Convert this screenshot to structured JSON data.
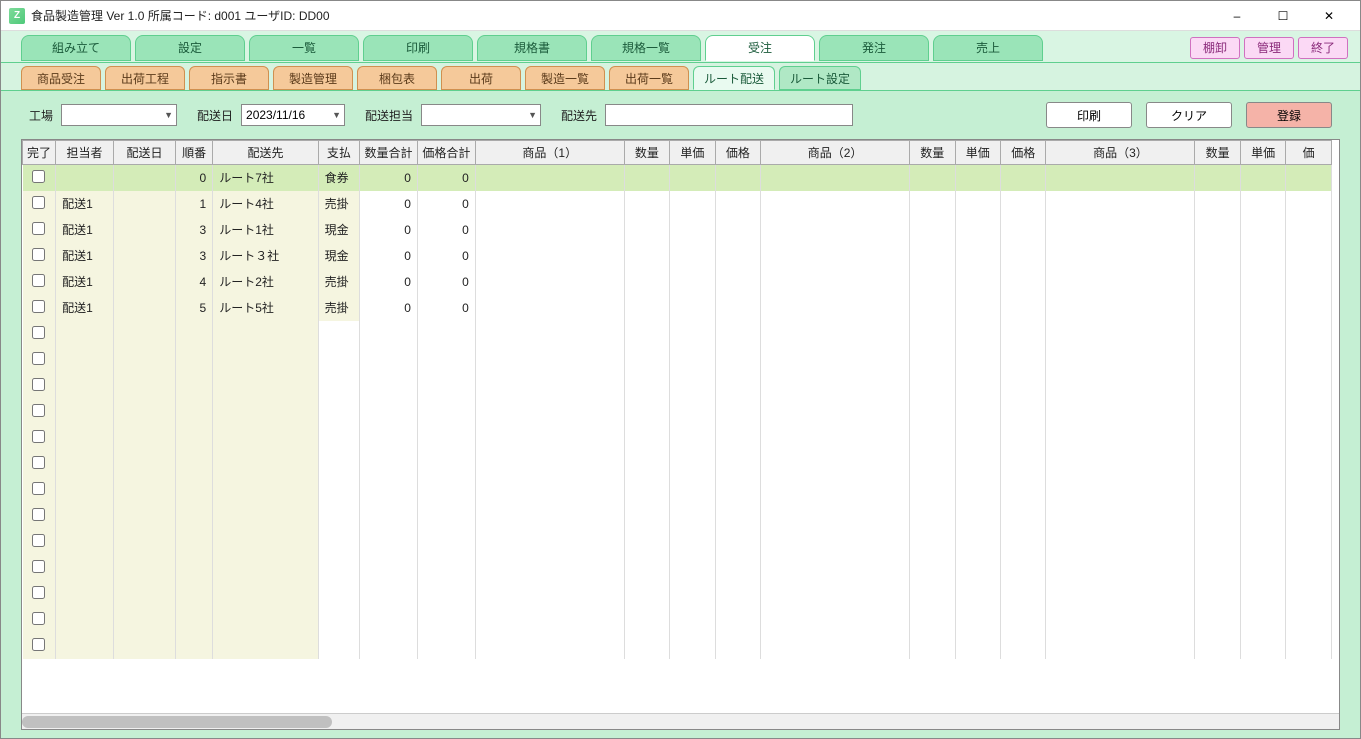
{
  "window": {
    "title": "食品製造管理 Ver 1.0  所属コード: d001       ユーザID: DD00",
    "icon_letter": "Z"
  },
  "topActions": {
    "inventory": "棚卸",
    "admin": "管理",
    "exit": "終了"
  },
  "mainTabs": [
    {
      "label": "組み立て"
    },
    {
      "label": "設定"
    },
    {
      "label": "一覧"
    },
    {
      "label": "印刷"
    },
    {
      "label": "規格書"
    },
    {
      "label": "規格一覧"
    },
    {
      "label": "受注",
      "active": true
    },
    {
      "label": "発注"
    },
    {
      "label": "売上"
    }
  ],
  "subTabs": [
    {
      "label": "商品受注"
    },
    {
      "label": "出荷工程"
    },
    {
      "label": "指示書"
    },
    {
      "label": "製造管理"
    },
    {
      "label": "梱包表"
    },
    {
      "label": "出荷"
    },
    {
      "label": "製造一覧"
    },
    {
      "label": "出荷一覧"
    },
    {
      "label": "ルート配送",
      "active": true,
      "green": true
    },
    {
      "label": "ルート設定",
      "green": true
    }
  ],
  "filters": {
    "factory_label": "工場",
    "factory_value": "",
    "date_label": "配送日",
    "date_value": "2023/11/16",
    "staff_label": "配送担当",
    "staff_value": "",
    "dest_label": "配送先",
    "dest_value": ""
  },
  "actions": {
    "print": "印刷",
    "clear": "クリア",
    "register": "登録"
  },
  "columns": [
    {
      "label": "完了",
      "cls": "c-done"
    },
    {
      "label": "担当者",
      "cls": "c-staff"
    },
    {
      "label": "配送日",
      "cls": "c-date"
    },
    {
      "label": "順番",
      "cls": "c-ord"
    },
    {
      "label": "配送先",
      "cls": "c-dest"
    },
    {
      "label": "支払",
      "cls": "c-pay"
    },
    {
      "label": "数量合計",
      "cls": "c-qtot"
    },
    {
      "label": "価格合計",
      "cls": "c-ptot"
    },
    {
      "label": "商品（1）",
      "cls": "c-prod"
    },
    {
      "label": "数量",
      "cls": "c-qty"
    },
    {
      "label": "単価",
      "cls": "c-unit"
    },
    {
      "label": "価格",
      "cls": "c-price"
    },
    {
      "label": "商品（2）",
      "cls": "c-prod"
    },
    {
      "label": "数量",
      "cls": "c-qty"
    },
    {
      "label": "単価",
      "cls": "c-unit"
    },
    {
      "label": "価格",
      "cls": "c-price"
    },
    {
      "label": "商品（3）",
      "cls": "c-prod"
    },
    {
      "label": "数量",
      "cls": "c-qty"
    },
    {
      "label": "単価",
      "cls": "c-unit"
    },
    {
      "label": "価",
      "cls": "c-price"
    }
  ],
  "rows": [
    {
      "selected": true,
      "staff": "",
      "date": "",
      "ord": "0",
      "dest": "ルート7社",
      "pay": "食券",
      "qtot": "0",
      "ptot": "0"
    },
    {
      "selected": false,
      "staff": "配送1",
      "date": "",
      "ord": "1",
      "dest": "ルート4社",
      "pay": "売掛",
      "qtot": "0",
      "ptot": "0"
    },
    {
      "selected": false,
      "staff": "配送1",
      "date": "",
      "ord": "3",
      "dest": "ルート1社",
      "pay": "現金",
      "qtot": "0",
      "ptot": "0"
    },
    {
      "selected": false,
      "staff": "配送1",
      "date": "",
      "ord": "3",
      "dest": "ルート３社",
      "pay": "現金",
      "qtot": "0",
      "ptot": "0"
    },
    {
      "selected": false,
      "staff": "配送1",
      "date": "",
      "ord": "4",
      "dest": "ルート2社",
      "pay": "売掛",
      "qtot": "0",
      "ptot": "0"
    },
    {
      "selected": false,
      "staff": "配送1",
      "date": "",
      "ord": "5",
      "dest": "ルート5社",
      "pay": "売掛",
      "qtot": "0",
      "ptot": "0"
    }
  ],
  "emptyRows": 13
}
